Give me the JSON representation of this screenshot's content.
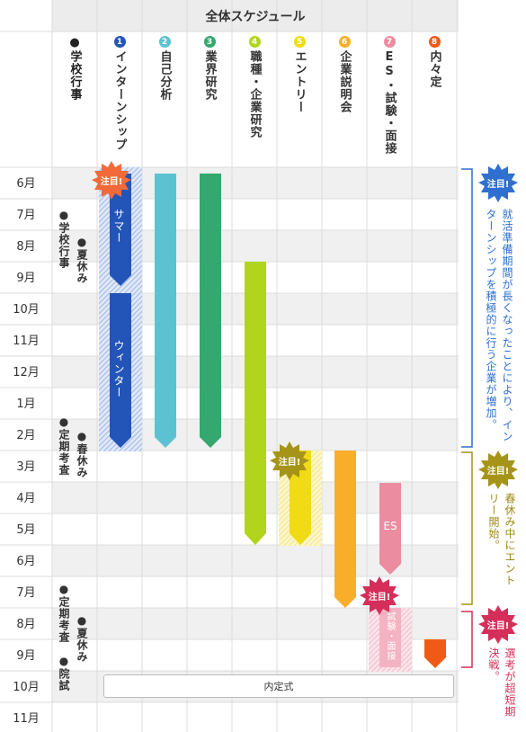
{
  "header": {
    "title": "全体スケジュール"
  },
  "columns": [
    {
      "num": "●",
      "label": "学校行事",
      "color": "#222222"
    },
    {
      "num": "1",
      "label": "インターンシップ",
      "color": "#2355b8"
    },
    {
      "num": "2",
      "label": "自己分析",
      "color": "#5cc2d2"
    },
    {
      "num": "3",
      "label": "業界研究",
      "color": "#34a86e"
    },
    {
      "num": "4",
      "label": "職種・企業研究",
      "color": "#b2d41c"
    },
    {
      "num": "5",
      "label": "エントリー",
      "color": "#f0db14"
    },
    {
      "num": "6",
      "label": "企業説明会",
      "color": "#f8ae2a"
    },
    {
      "num": "7",
      "label": "ES・試験・面接",
      "color": "#ec8ca0"
    },
    {
      "num": "8",
      "label": "内々定",
      "color": "#f05a14"
    }
  ],
  "months": [
    "6月",
    "7月",
    "8月",
    "9月",
    "10月",
    "11月",
    "12月",
    "1月",
    "2月",
    "3月",
    "4月",
    "5月",
    "6月",
    "7月",
    "8月",
    "9月",
    "10月",
    "11月"
  ],
  "school_events": {
    "ev1": "●学校行事",
    "ev2": "●夏休み",
    "ev3": "●定期考査",
    "ev4": "●春休み",
    "ev5": "●定期考査",
    "ev6": "●夏休み",
    "ev7": "●院試"
  },
  "bar_labels": {
    "summer": "サマー",
    "winter": "ウィンター",
    "es": "ES",
    "exam": "試験・面接"
  },
  "badge_label": "注目!",
  "naiteishiki": "内定式",
  "notes": [
    {
      "text": "就活準備期間が長くなったことにより、インターンシップを積極的に行う企業が増加。",
      "color": "#2f6fd0"
    },
    {
      "text": "春休み中にエントリー開始。",
      "color": "#9c8a14"
    },
    {
      "text": "選考が超短期決戦。",
      "color": "#d0305a"
    }
  ],
  "colors": {
    "grid": "#dddddd",
    "shade": "#f0f0f0",
    "badge": "#f26a3a"
  }
}
